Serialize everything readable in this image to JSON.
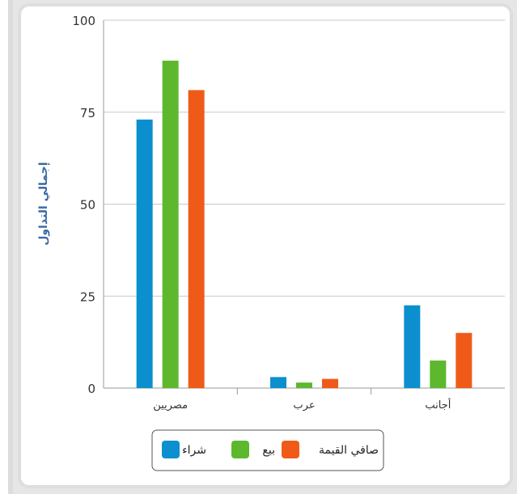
{
  "chart_data": {
    "type": "bar",
    "categories": [
      "مصريين",
      "عرب",
      "أجانب"
    ],
    "series": [
      {
        "name": "شراء",
        "color": "#0b8fcf",
        "values": [
          73,
          3,
          22.5
        ]
      },
      {
        "name": "بيع",
        "color": "#5db82d",
        "values": [
          89,
          1.5,
          7.5
        ]
      },
      {
        "name": "صافي القيمة",
        "color": "#f05a19",
        "values": [
          81,
          2.5,
          15
        ]
      }
    ],
    "ylabel": "إجمالي التداول",
    "ylim": [
      0,
      100
    ],
    "yticks": [
      0,
      25,
      50,
      75,
      100
    ],
    "grid": true,
    "legend": "bottom-center"
  }
}
